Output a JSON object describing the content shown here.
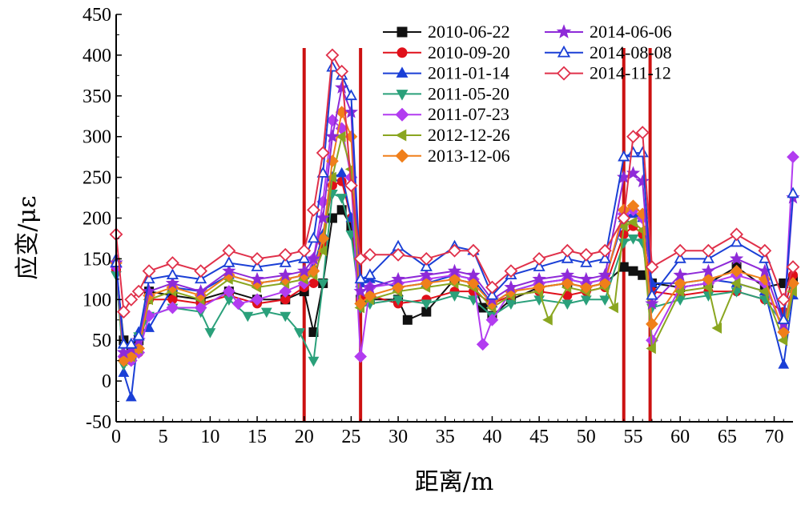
{
  "chart_data": {
    "type": "line",
    "title": "",
    "xlabel": "距离/m",
    "ylabel": "应变/με",
    "xlim": [
      0,
      72
    ],
    "ylim": [
      -50,
      450
    ],
    "xticks": [
      0,
      5,
      10,
      15,
      20,
      25,
      30,
      35,
      40,
      45,
      50,
      55,
      60,
      65,
      70
    ],
    "yticks": [
      -50,
      0,
      50,
      100,
      150,
      200,
      250,
      300,
      350,
      400,
      450
    ],
    "grid": false,
    "legend_position": "top-right",
    "reference_lines_x": [
      20,
      26,
      54,
      56.8
    ],
    "reference_line_color": "#cc1111",
    "series": [
      {
        "name": "2010-06-22",
        "color": "#111111",
        "marker": "square",
        "x": [
          0,
          0.8,
          1.6,
          2.4,
          3.5,
          6,
          9,
          12,
          15,
          18,
          20,
          21,
          22,
          23,
          24,
          25,
          26,
          27,
          30,
          31,
          33,
          36,
          38,
          39,
          40,
          42,
          45,
          48,
          50,
          52,
          54,
          55,
          56,
          57,
          60,
          63,
          66,
          69,
          71,
          72
        ],
        "y": [
          140,
          50,
          40,
          50,
          110,
          105,
          100,
          110,
          100,
          100,
          110,
          60,
          120,
          200,
          210,
          190,
          100,
          100,
          100,
          75,
          85,
          125,
          120,
          90,
          80,
          100,
          115,
          120,
          115,
          120,
          140,
          135,
          130,
          120,
          115,
          120,
          140,
          115,
          120,
          125
        ]
      },
      {
        "name": "2010-09-20",
        "color": "#e0101a",
        "marker": "circle",
        "x": [
          0,
          0.8,
          1.6,
          2.4,
          3.5,
          6,
          9,
          12,
          15,
          18,
          20,
          21,
          22,
          23,
          24,
          25,
          26,
          27,
          30,
          33,
          36,
          38,
          40,
          42,
          45,
          48,
          50,
          52,
          54,
          55,
          56,
          57,
          60,
          63,
          66,
          69,
          71,
          72
        ],
        "y": [
          135,
          30,
          25,
          35,
          100,
          100,
          95,
          105,
          95,
          100,
          115,
          120,
          170,
          240,
          245,
          200,
          100,
          105,
          95,
          100,
          110,
          110,
          95,
          105,
          110,
          105,
          110,
          115,
          180,
          190,
          180,
          110,
          105,
          110,
          110,
          100,
          85,
          130
        ]
      },
      {
        "name": "2011-01-14",
        "color": "#1a3fd6",
        "marker": "triangle-up",
        "x": [
          0,
          0.8,
          1.6,
          2.4,
          3.5,
          6,
          9,
          12,
          15,
          18,
          20,
          21,
          22,
          23,
          24,
          25,
          26,
          27,
          30,
          33,
          36,
          38,
          40,
          42,
          45,
          48,
          50,
          52,
          54,
          55,
          56,
          57,
          60,
          63,
          66,
          69,
          71,
          72
        ],
        "y": [
          150,
          10,
          -20,
          60,
          65,
          115,
          110,
          130,
          120,
          125,
          130,
          140,
          180,
          250,
          255,
          200,
          120,
          125,
          115,
          120,
          130,
          125,
          95,
          110,
          120,
          125,
          120,
          125,
          200,
          205,
          200,
          120,
          120,
          125,
          120,
          110,
          20,
          105
        ]
      },
      {
        "name": "2011-05-20",
        "color": "#2aa07a",
        "marker": "triangle-down",
        "x": [
          0,
          0.8,
          1.6,
          2.4,
          3.5,
          6,
          9,
          10,
          12,
          14,
          16,
          18,
          19.5,
          21,
          22,
          23,
          24,
          25,
          26,
          27,
          30,
          33,
          36,
          38,
          40,
          42,
          45,
          48,
          50,
          52,
          54,
          55,
          56,
          57,
          60,
          63,
          66,
          69,
          71,
          72
        ],
        "y": [
          130,
          20,
          30,
          55,
          80,
          90,
          85,
          60,
          100,
          80,
          85,
          80,
          60,
          25,
          120,
          230,
          225,
          180,
          90,
          95,
          100,
          95,
          105,
          100,
          80,
          95,
          100,
          95,
          100,
          100,
          170,
          175,
          170,
          90,
          100,
          105,
          110,
          100,
          70,
          115
        ]
      },
      {
        "name": "2011-07-23",
        "color": "#b23cf0",
        "marker": "diamond",
        "x": [
          0,
          0.8,
          1.6,
          2.4,
          3.5,
          6,
          9,
          12,
          13,
          15,
          18,
          20,
          21,
          22,
          23,
          24,
          25,
          26,
          27,
          30,
          33,
          36,
          38,
          39,
          40,
          42,
          45,
          48,
          50,
          52,
          54,
          55,
          56,
          57,
          60,
          63,
          66,
          69,
          71,
          72
        ],
        "y": [
          140,
          30,
          25,
          35,
          80,
          90,
          90,
          110,
          95,
          100,
          110,
          120,
          150,
          220,
          320,
          310,
          250,
          30,
          115,
          120,
          125,
          130,
          125,
          45,
          75,
          110,
          120,
          125,
          120,
          125,
          205,
          210,
          200,
          50,
          115,
          120,
          130,
          120,
          60,
          275
        ]
      },
      {
        "name": "2012-12-26",
        "color": "#8aa620",
        "marker": "triangle-left",
        "x": [
          0,
          0.8,
          1.6,
          2.4,
          3.5,
          6,
          9,
          12,
          15,
          18,
          20,
          21,
          22,
          23,
          24,
          25,
          26,
          27,
          30,
          33,
          36,
          38,
          40,
          42,
          45,
          46,
          48,
          50,
          52,
          53,
          54,
          55,
          56,
          57,
          60,
          63,
          64,
          66,
          69,
          71,
          72
        ],
        "y": [
          145,
          25,
          30,
          40,
          100,
          110,
          100,
          125,
          115,
          120,
          125,
          130,
          160,
          250,
          300,
          260,
          90,
          100,
          110,
          115,
          120,
          115,
          90,
          105,
          110,
          75,
          115,
          110,
          115,
          90,
          190,
          195,
          185,
          40,
          110,
          115,
          65,
          120,
          110,
          50,
          110
        ]
      },
      {
        "name": "2013-12-06",
        "color": "#f07f1a",
        "marker": "diamond",
        "x": [
          0,
          0.8,
          1.6,
          2.4,
          3.5,
          6,
          9,
          12,
          15,
          18,
          20,
          21,
          22,
          23,
          24,
          25,
          26,
          27,
          30,
          33,
          36,
          38,
          40,
          42,
          45,
          48,
          50,
          52,
          54,
          55,
          56,
          57,
          60,
          63,
          66,
          69,
          71,
          72
        ],
        "y": [
          145,
          25,
          30,
          40,
          105,
          115,
          105,
          130,
          120,
          125,
          130,
          135,
          175,
          270,
          330,
          300,
          95,
          105,
          115,
          120,
          125,
          120,
          95,
          110,
          115,
          120,
          115,
          120,
          210,
          215,
          205,
          70,
          120,
          125,
          135,
          125,
          60,
          120
        ]
      },
      {
        "name": "2014-06-06",
        "color": "#8e2ad8",
        "marker": "star",
        "x": [
          0,
          0.8,
          1.6,
          2.4,
          3.5,
          6,
          9,
          12,
          15,
          18,
          20,
          21,
          22,
          23,
          24,
          25,
          26,
          27,
          30,
          33,
          36,
          38,
          40,
          42,
          45,
          48,
          50,
          52,
          54,
          55,
          56,
          57,
          60,
          63,
          66,
          69,
          71,
          72
        ],
        "y": [
          145,
          35,
          40,
          50,
          110,
          120,
          110,
          135,
          125,
          130,
          135,
          150,
          200,
          300,
          360,
          330,
          110,
          115,
          125,
          130,
          135,
          130,
          100,
          115,
          125,
          130,
          125,
          130,
          250,
          255,
          245,
          95,
          130,
          135,
          150,
          135,
          70,
          225
        ]
      },
      {
        "name": "2014-08-08",
        "color": "#1a3fd6",
        "marker": "open-triangle",
        "x": [
          0,
          0.8,
          1.6,
          2.4,
          3.5,
          6,
          9,
          12,
          15,
          18,
          20,
          21,
          22,
          23,
          24,
          25,
          26,
          27,
          30,
          33,
          36,
          38,
          40,
          42,
          45,
          48,
          50,
          52,
          54,
          55,
          56,
          57,
          60,
          63,
          66,
          69,
          71,
          72
        ],
        "y": [
          145,
          45,
          45,
          55,
          125,
          130,
          125,
          145,
          140,
          145,
          150,
          175,
          255,
          385,
          375,
          350,
          125,
          130,
          165,
          140,
          165,
          160,
          105,
          130,
          140,
          150,
          145,
          150,
          275,
          280,
          280,
          105,
          150,
          150,
          170,
          150,
          75,
          230
        ]
      },
      {
        "name": "2014-11-12",
        "color": "#e0304a",
        "marker": "open-diamond",
        "x": [
          0,
          0.8,
          1.6,
          2.4,
          3.5,
          6,
          9,
          12,
          15,
          18,
          20,
          21,
          22,
          23,
          24,
          25,
          26,
          27,
          30,
          33,
          36,
          38,
          40,
          42,
          45,
          48,
          50,
          52,
          54,
          55,
          56,
          57,
          60,
          63,
          66,
          69,
          71,
          72
        ],
        "y": [
          180,
          85,
          100,
          110,
          135,
          145,
          135,
          160,
          150,
          155,
          160,
          210,
          280,
          400,
          380,
          240,
          150,
          155,
          155,
          150,
          160,
          160,
          115,
          135,
          150,
          160,
          155,
          160,
          200,
          300,
          305,
          140,
          160,
          160,
          180,
          160,
          100,
          140
        ]
      }
    ]
  }
}
